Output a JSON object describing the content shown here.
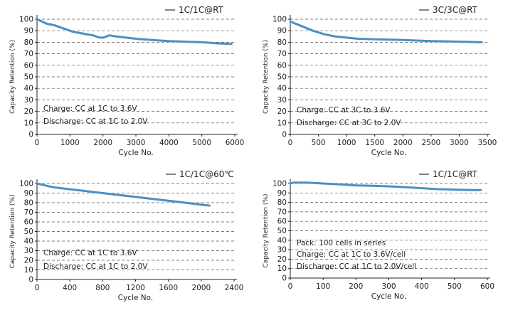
{
  "chart_data": [
    {
      "type": "line",
      "legend": "1C/1C@RT",
      "legend_position": "top-right",
      "xlabel": "Cycle No.",
      "ylabel": "Capacity Retention (%)",
      "xlim": [
        0,
        6000
      ],
      "ylim": [
        0,
        100
      ],
      "xticks": [
        0,
        1000,
        2000,
        3000,
        4000,
        5000,
        6000
      ],
      "yticks": [
        0,
        10,
        20,
        30,
        40,
        50,
        60,
        70,
        80,
        90,
        100
      ],
      "grid": true,
      "color": "#4a90c4",
      "annotations": [
        "Charge: CC at 1C to 3.6V",
        "Discharge: CC at 1C to 2.0V"
      ],
      "x": [
        0,
        150,
        300,
        500,
        700,
        900,
        1100,
        1300,
        1500,
        1700,
        1900,
        2000,
        2100,
        2200,
        2400,
        2700,
        3000,
        3500,
        4000,
        4500,
        5000,
        5500,
        5900
      ],
      "y": [
        100,
        98,
        96,
        95,
        93,
        91,
        89,
        88,
        87,
        86,
        84,
        84,
        85,
        86,
        85,
        84,
        83,
        82,
        81,
        80.5,
        80,
        79,
        78.5
      ]
    },
    {
      "type": "line",
      "legend": "3C/3C@RT",
      "legend_position": "top-right",
      "xlabel": "Cycle No.",
      "ylabel": "Capacity Retention (%)",
      "xlim": [
        0,
        3500
      ],
      "ylim": [
        0,
        100
      ],
      "xticks": [
        0,
        500,
        1000,
        1500,
        2000,
        2500,
        3000,
        3500
      ],
      "yticks": [
        0,
        10,
        20,
        30,
        40,
        50,
        60,
        70,
        80,
        90,
        100
      ],
      "grid": true,
      "color": "#4a90c4",
      "annotations": [
        "Charge: CC at 3C to 3.6V",
        "Discharge: CC at 3C to 2.0V"
      ],
      "x": [
        0,
        100,
        200,
        400,
        600,
        800,
        1000,
        1200,
        1500,
        2000,
        2500,
        3000,
        3400
      ],
      "y": [
        98,
        96,
        94,
        90,
        87,
        85,
        84,
        83,
        82.5,
        82,
        81,
        80.5,
        80
      ]
    },
    {
      "type": "line",
      "legend": "1C/1C@60℃",
      "legend_position": "top-right",
      "xlabel": "Cycle No.",
      "ylabel": "Capacity Retention (%)",
      "xlim": [
        0,
        2400
      ],
      "ylim": [
        0,
        100
      ],
      "xticks": [
        0,
        400,
        800,
        1200,
        1600,
        2000,
        2400
      ],
      "yticks": [
        0,
        10,
        20,
        30,
        40,
        50,
        60,
        70,
        80,
        90,
        100
      ],
      "grid": true,
      "color": "#4a90c4",
      "annotations": [
        "Charge: CC at 1C to 3.6V",
        "Discharge: CC at 1C to 2.0V"
      ],
      "x": [
        0,
        100,
        200,
        300,
        400,
        600,
        800,
        1000,
        1200,
        1400,
        1600,
        1800,
        2000,
        2100
      ],
      "y": [
        100,
        98,
        96,
        95,
        94,
        92,
        90,
        88,
        86,
        84,
        82,
        80,
        78,
        77
      ]
    },
    {
      "type": "line",
      "legend": "1C/1C@RT",
      "legend_position": "top-right",
      "xlabel": "Cycle No.",
      "ylabel": "Capacity Retention (%)",
      "xlim": [
        0,
        600
      ],
      "ylim": [
        0,
        100
      ],
      "xticks": [
        0,
        100,
        200,
        300,
        400,
        500,
        600
      ],
      "yticks": [
        0,
        10,
        20,
        30,
        40,
        50,
        60,
        70,
        80,
        90,
        100
      ],
      "grid": true,
      "color": "#4a90c4",
      "annotations": [
        "Pack: 100 cells in series",
        "Charge: CC at 1C to 3.6V/cell",
        "Discharge: CC at 1C to 2.0V/cell"
      ],
      "x": [
        0,
        10,
        20,
        50,
        100,
        150,
        200,
        250,
        300,
        350,
        400,
        450,
        500,
        550,
        580
      ],
      "y": [
        100,
        101,
        101,
        101,
        100,
        99,
        98,
        97.5,
        97,
        96,
        95,
        94,
        93.5,
        93,
        93
      ]
    }
  ]
}
